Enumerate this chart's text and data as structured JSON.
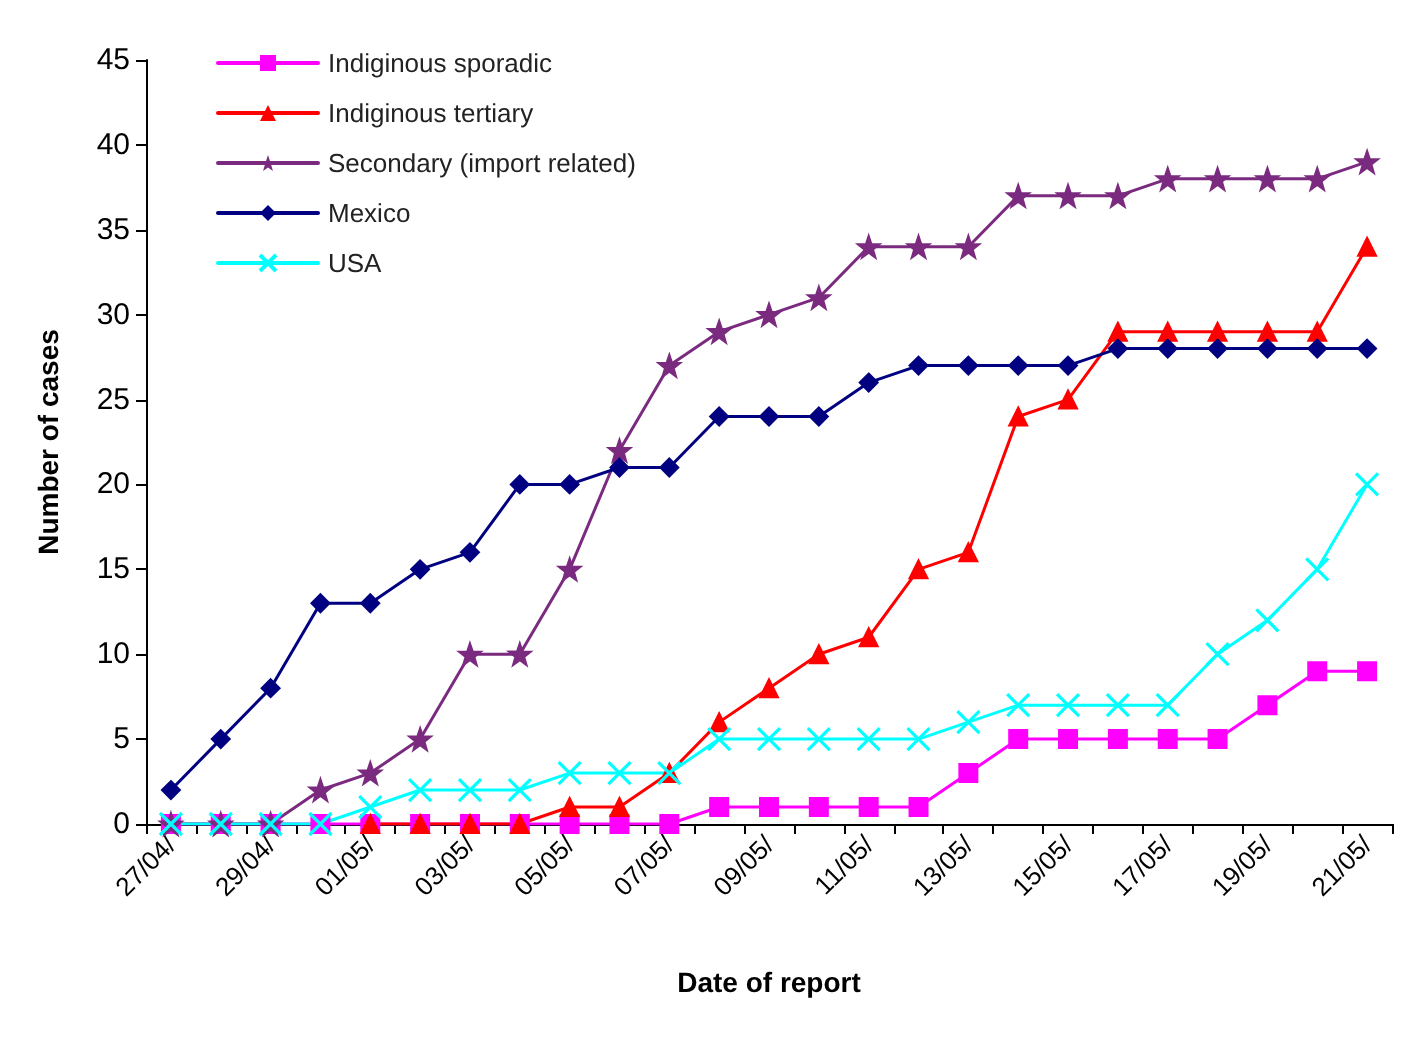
{
  "chart_data": {
    "type": "line",
    "xlabel": "Date of report",
    "ylabel": "Number of cases",
    "categories": [
      "27/04/",
      null,
      "29/04/",
      null,
      "01/05/",
      null,
      "03/05/",
      null,
      "05/05/",
      null,
      "07/05/",
      null,
      "09/05/",
      null,
      "11/05/",
      null,
      "13/05/",
      null,
      "15/05/",
      null,
      "17/05/",
      null,
      "19/05/",
      null,
      "21/05/"
    ],
    "series": [
      {
        "name": "Indiginous sporadic",
        "color": "#ff00ff",
        "marker": "square",
        "values": [
          0,
          0,
          0,
          0,
          0,
          0,
          0,
          0,
          0,
          0,
          0,
          1,
          1,
          1,
          1,
          1,
          3,
          5,
          5,
          5,
          5,
          5,
          7,
          9,
          9
        ]
      },
      {
        "name": "Indiginous tertiary",
        "color": "#ff0000",
        "marker": "triangle",
        "values": [
          null,
          null,
          null,
          null,
          0,
          0,
          0,
          0,
          1,
          1,
          3,
          6,
          8,
          10,
          11,
          15,
          16,
          24,
          25,
          29,
          29,
          29,
          29,
          29,
          34
        ]
      },
      {
        "name": "Secondary (import related)",
        "color": "#7b2b7f",
        "marker": "star",
        "values": [
          0,
          0,
          0,
          2,
          3,
          5,
          10,
          10,
          15,
          22,
          27,
          29,
          30,
          31,
          34,
          34,
          34,
          37,
          37,
          37,
          38,
          38,
          38,
          38,
          39
        ]
      },
      {
        "name": "Mexico",
        "color": "#000080",
        "marker": "diamond",
        "values": [
          2,
          5,
          8,
          13,
          13,
          15,
          16,
          20,
          20,
          21,
          21,
          24,
          24,
          24,
          26,
          27,
          27,
          27,
          27,
          28,
          28,
          28,
          28,
          28,
          28
        ]
      },
      {
        "name": "USA",
        "color": "#00ffff",
        "marker": "cross",
        "values": [
          0,
          0,
          0,
          0,
          1,
          2,
          2,
          2,
          3,
          3,
          3,
          5,
          5,
          5,
          5,
          5,
          6,
          7,
          7,
          7,
          7,
          10,
          12,
          15,
          20
        ]
      }
    ],
    "ylim": [
      0,
      45
    ],
    "yticks": [
      0,
      5,
      10,
      15,
      20,
      25,
      30,
      35,
      40,
      45
    ],
    "grid": false,
    "legend": "top left",
    "line_style": "solid"
  }
}
